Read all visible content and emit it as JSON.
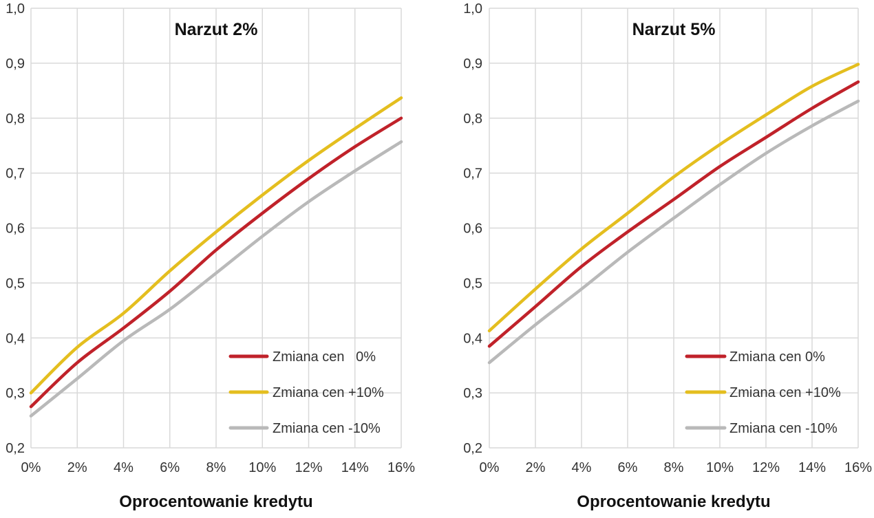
{
  "chart_data": [
    {
      "type": "line",
      "title": "Narzut 2%",
      "xlabel": "Oprocentowanie kredytu",
      "ylabel": "",
      "x": [
        0,
        2,
        4,
        6,
        8,
        10,
        12,
        14,
        16
      ],
      "x_tick_labels": [
        "0%",
        "2%",
        "4%",
        "6%",
        "8%",
        "10%",
        "12%",
        "14%",
        "16%"
      ],
      "y_tick_labels": [
        "0,2",
        "0,3",
        "0,4",
        "0,5",
        "0,6",
        "0,7",
        "0,8",
        "0,9",
        "1,0"
      ],
      "xlim": [
        0,
        16
      ],
      "ylim": [
        0.2,
        1.0
      ],
      "grid": true,
      "legend_position": "bottom-right",
      "series": [
        {
          "name": "Zmiana cen   0%",
          "color": "#c0222a",
          "values": [
            0.275,
            0.355,
            0.418,
            0.485,
            0.56,
            0.627,
            0.69,
            0.748,
            0.8
          ]
        },
        {
          "name": "Zmiana cen +10%",
          "color": "#e4be1f",
          "values": [
            0.3,
            0.383,
            0.445,
            0.522,
            0.593,
            0.66,
            0.723,
            0.781,
            0.837
          ]
        },
        {
          "name": "Zmiana cen -10%",
          "color": "#b9b9b9",
          "values": [
            0.258,
            0.326,
            0.395,
            0.452,
            0.518,
            0.585,
            0.648,
            0.704,
            0.757
          ]
        }
      ]
    },
    {
      "type": "line",
      "title": "Narzut 5%",
      "xlabel": "Oprocentowanie kredytu",
      "ylabel": "",
      "x": [
        0,
        2,
        4,
        6,
        8,
        10,
        12,
        14,
        16
      ],
      "x_tick_labels": [
        "0%",
        "2%",
        "4%",
        "6%",
        "8%",
        "10%",
        "12%",
        "14%",
        "16%"
      ],
      "y_tick_labels": [
        "0,2",
        "0,3",
        "0,4",
        "0,5",
        "0,6",
        "0,7",
        "0,8",
        "0,9",
        "1,0"
      ],
      "xlim": [
        0,
        16
      ],
      "ylim": [
        0.2,
        1.0
      ],
      "grid": true,
      "legend_position": "bottom-right",
      "series": [
        {
          "name": "Zmiana cen 0%",
          "color": "#c0222a",
          "values": [
            0.385,
            0.457,
            0.53,
            0.593,
            0.652,
            0.712,
            0.765,
            0.818,
            0.866
          ]
        },
        {
          "name": "Zmiana cen +10%",
          "color": "#e4be1f",
          "values": [
            0.413,
            0.489,
            0.562,
            0.627,
            0.693,
            0.752,
            0.806,
            0.858,
            0.898
          ]
        },
        {
          "name": "Zmiana cen -10%",
          "color": "#b9b9b9",
          "values": [
            0.355,
            0.424,
            0.489,
            0.556,
            0.618,
            0.679,
            0.736,
            0.786,
            0.831
          ]
        }
      ]
    }
  ]
}
